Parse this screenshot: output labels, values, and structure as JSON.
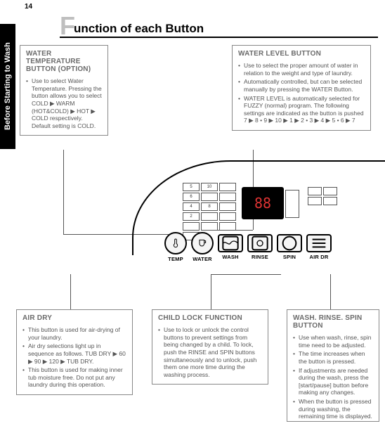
{
  "page_number": "14",
  "side_tab": "Before Starting to Wash",
  "title": "unction of each Button",
  "boxes": {
    "temp": {
      "heading": "WATER TEMPERATURE BUTTON (OPTION)",
      "items": [
        "Use to select Water Temperature. Pressing the button allows you to select COLD ▶ WARM (HOT&COLD) ▶ HOT ▶ COLD respectively. Default setting is COLD."
      ]
    },
    "level": {
      "heading": "WATER LEVEL BUTTON",
      "items": [
        "Use to select the proper amount of water in relation to the weight and type of laundry.",
        "Automatically controlled, but can be selected manually by pressing the WATER Button.",
        "WATER LEVEL is automatically selected for FUZZY (normal) program. The following settings are indicated as the button is pushed 7 ▶ 8 • 9 ▶ 10 ▶ 1 ▶ 2 • 3 ▶ 4 ▶ 5 • 6 ▶ 7"
      ]
    },
    "airdry": {
      "heading": "AIR DRY",
      "items": [
        "This button is used for air-drying of your laundry.",
        "Air dry selections light up in sequence as follows. TUB DRY ▶ 60 ▶ 90 ▶ 120 ▶ TUB DRY.",
        "This button is used for making inner tub moisture free. Do not put any laundry during this operation."
      ]
    },
    "childlock": {
      "heading": "CHILD LOCK FUNCTION",
      "items": [
        "Use to lock or unlock the control buttons to prevent settings from being changed by a child. To lock, push the RINSE and SPIN buttons simultaneously and to unlock, push them one more time during the washing process."
      ]
    },
    "wrs": {
      "heading": "WASH. RINSE. SPIN BUTTON",
      "items": [
        "Use when wash, rinse, spin time need to be adjusted.",
        "The time increases when the button is pressed.",
        "If adjustments are needed during the wash, press the [start/pause] button before making any changes.",
        "When the button is pressed during washing, the remaining time is displayed."
      ]
    }
  },
  "panel": {
    "display_value": "88",
    "knobs": [
      {
        "label": "TEMP",
        "shape": "circle",
        "icon": "thermometer"
      },
      {
        "label": "WATER",
        "shape": "circle",
        "icon": "cup"
      },
      {
        "label": "WASH",
        "shape": "rect",
        "icon": "wash"
      },
      {
        "label": "RINSE",
        "shape": "rect",
        "icon": "rinse"
      },
      {
        "label": "SPIN",
        "shape": "rect",
        "icon": "spin"
      },
      {
        "label": "AIR DR",
        "shape": "rect",
        "icon": "airdry"
      }
    ],
    "grid_labels": [
      "5",
      "10",
      "",
      "6",
      "",
      "",
      "4",
      "8",
      "",
      "2",
      "",
      "",
      "",
      "",
      "",
      ""
    ],
    "colors": {
      "display_bg": "#000000",
      "display_fg": "#d83a2a",
      "line": "#555555"
    }
  }
}
